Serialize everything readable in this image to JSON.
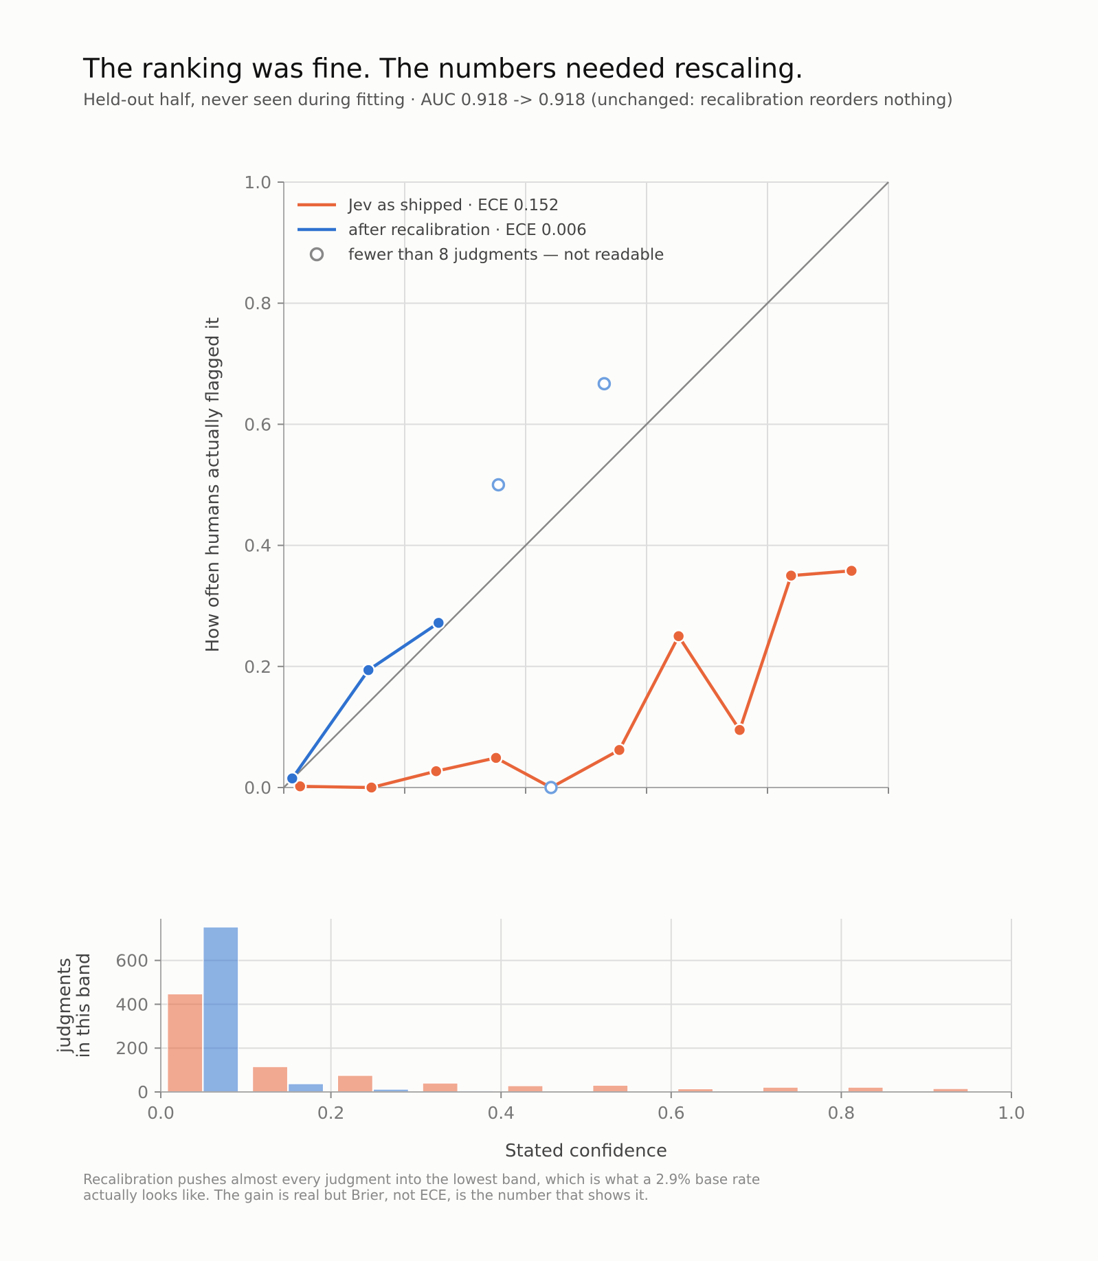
{
  "title": "The ranking was fine. The numbers needed rescaling.",
  "subtitle": "Held-out half, never seen during fitting · AUC 0.918 -> 0.918 (unchanged: recalibration reorders nothing)",
  "caption_line1": "Recalibration pushes almost every judgment into the lowest band, which is what a 2.9% base rate",
  "caption_line2": "actually looks like. The gain is real but Brier, not ECE, is the number that shows it.",
  "colors": {
    "shipped": "#e8653a",
    "recal": "#2f72d0",
    "recal_light": "#6fa0e0",
    "diagonal": "#888888",
    "grid": "#dddddd"
  },
  "chart_data": [
    {
      "type": "line",
      "ylabel": "How often humans actually flagged it",
      "xlim": [
        0,
        1
      ],
      "ylim": [
        0,
        1
      ],
      "yticks": [
        "0.0",
        "0.2",
        "0.4",
        "0.6",
        "0.8",
        "1.0"
      ],
      "grid": true,
      "legend_position": "top-left",
      "diagonal": "perfect calibration line y = x",
      "series": [
        {
          "name": "Jev as shipped · ECE 0.152",
          "color_key": "shipped",
          "points": [
            {
              "x": 0.027,
              "y": 0.002
            },
            {
              "x": 0.145,
              "y": 0.0
            },
            {
              "x": 0.252,
              "y": 0.027
            },
            {
              "x": 0.351,
              "y": 0.049
            },
            {
              "x": 0.442,
              "y": 0.0
            },
            {
              "x": 0.555,
              "y": 0.062
            },
            {
              "x": 0.653,
              "y": 0.25
            },
            {
              "x": 0.754,
              "y": 0.095
            },
            {
              "x": 0.839,
              "y": 0.35
            },
            {
              "x": 0.939,
              "y": 0.358
            }
          ]
        },
        {
          "name": "after recalibration · ECE 0.006",
          "color_key": "recal",
          "points": [
            {
              "x": 0.014,
              "y": 0.015
            },
            {
              "x": 0.14,
              "y": 0.194
            },
            {
              "x": 0.256,
              "y": 0.272
            }
          ],
          "sparse_points": [
            {
              "x": 0.355,
              "y": 0.5
            },
            {
              "x": 0.53,
              "y": 0.667
            },
            {
              "x": 0.442,
              "y": 0.0
            }
          ]
        }
      ],
      "sparse_legend": "fewer than 8 judgments — not readable"
    },
    {
      "type": "bar",
      "xlabel": "Stated confidence",
      "ylabel_line1": "judgments",
      "ylabel_line2": "in this band",
      "xlim": [
        0,
        1
      ],
      "ylim": [
        0,
        790
      ],
      "xticks": [
        "0.0",
        "0.2",
        "0.4",
        "0.6",
        "0.8",
        "1.0"
      ],
      "yticks": [
        "0",
        "200",
        "400",
        "600"
      ],
      "bin_width": 0.1,
      "bins": [
        "0.0-0.1",
        "0.1-0.2",
        "0.2-0.3",
        "0.3-0.4",
        "0.4-0.5",
        "0.5-0.6",
        "0.6-0.7",
        "0.7-0.8",
        "0.8-0.9",
        "0.9-1.0"
      ],
      "series": [
        {
          "name": "Jev as shipped",
          "color_key": "shipped",
          "values": [
            447,
            115,
            75,
            40,
            28,
            30,
            14,
            21,
            21,
            15
          ]
        },
        {
          "name": "after recalibration",
          "color_key": "recal",
          "values": [
            752,
            37,
            12,
            5,
            0,
            0,
            0,
            0,
            0,
            0
          ]
        }
      ]
    }
  ]
}
